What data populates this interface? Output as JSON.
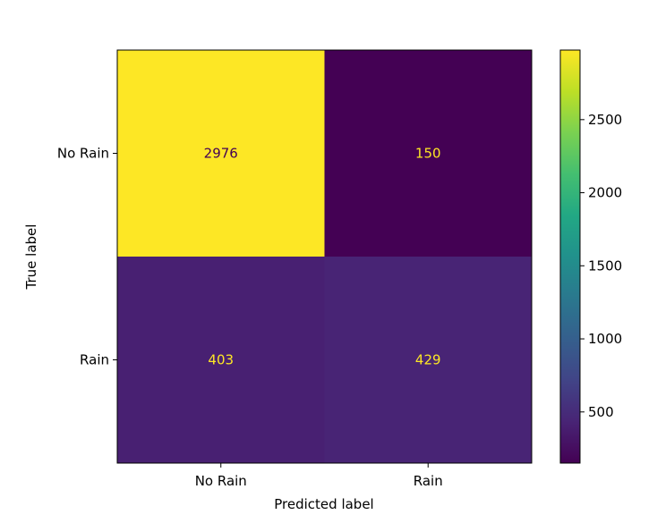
{
  "chart_data": {
    "type": "heatmap",
    "title": "",
    "xlabel": "Predicted label",
    "ylabel": "True label",
    "x_categories": [
      "No Rain",
      "Rain"
    ],
    "y_categories": [
      "No Rain",
      "Rain"
    ],
    "values": [
      [
        2976,
        150
      ],
      [
        403,
        429
      ]
    ],
    "colormap": "viridis",
    "colorbar": {
      "range": [
        150,
        2976
      ],
      "ticks": [
        500,
        1000,
        1500,
        2000,
        2500
      ],
      "tick_labels": [
        "500",
        "1000",
        "1500",
        "2000",
        "2500"
      ]
    },
    "grid": false,
    "text_colors": {
      "on_dark": "#fde725",
      "on_light": "#440154"
    }
  }
}
